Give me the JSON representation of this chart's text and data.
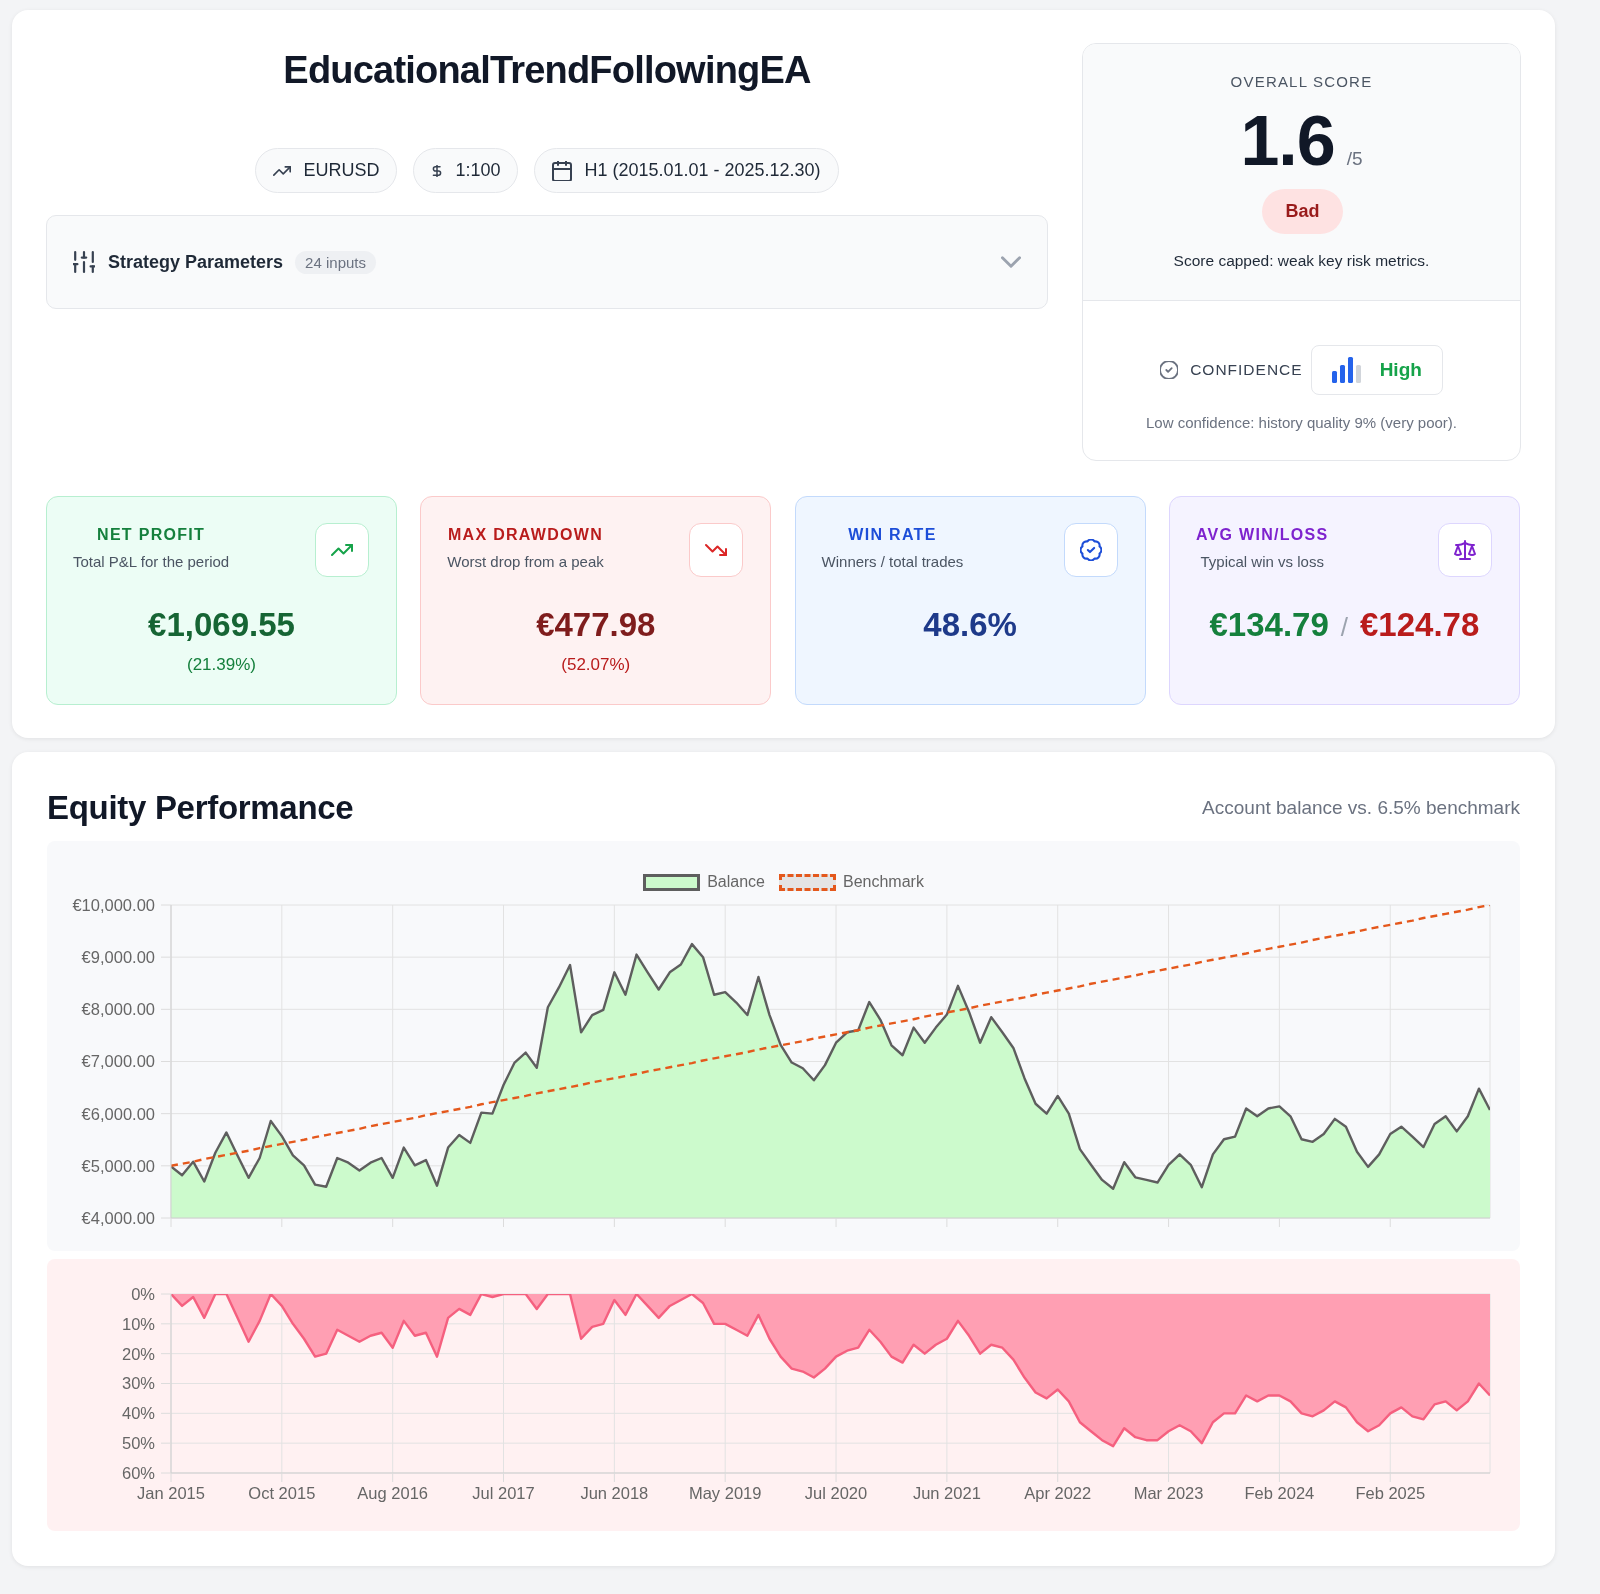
{
  "chart_data": [
    {
      "type": "other",
      "title": "EducationalTrendFollowingEA",
      "annotations": [
        "EURUSD",
        "1:100",
        "H1 (2015.01.01 - 2025.12.30)",
        "Strategy Parameters",
        "24 inputs",
        "OVERALL SCORE",
        "1.6",
        "/5",
        "Bad",
        "Score capped: weak key risk metrics.",
        "CONFIDENCE",
        "High",
        "Low confidence: history quality 9% (very poor).",
        "NET PROFIT",
        "Total P&L for the period",
        "€1,069.55",
        "(21.39%)",
        "MAX DRAWDOWN",
        "Worst drop from a peak",
        "€477.98",
        "(52.07%)",
        "WIN RATE",
        "Winners / total trades",
        "48.6%",
        "AVG WIN/LOSS",
        "Typical win vs loss",
        "€134.79",
        "/",
        "€124.78"
      ]
    },
    {
      "type": "area",
      "title": "Equity Performance",
      "subtitle": "Account balance vs. 6.5% benchmark",
      "categories": [
        null,
        null,
        null,
        null,
        null,
        null,
        null,
        null,
        null,
        null,
        null,
        null,
        null,
        null,
        null,
        null,
        null,
        null,
        null,
        null,
        null,
        null,
        null,
        null,
        null,
        null,
        null,
        null,
        null,
        null,
        null,
        null,
        null,
        null,
        null,
        null,
        null,
        null,
        null,
        null,
        null,
        null,
        null,
        null,
        null,
        null,
        null,
        null,
        null,
        null,
        null,
        null,
        null,
        null,
        null,
        null,
        null,
        null,
        null,
        null,
        null,
        null,
        null,
        null,
        null,
        null,
        null,
        null,
        null,
        null,
        null,
        null,
        null,
        null,
        null,
        null,
        null,
        null,
        null,
        null,
        null,
        null,
        null,
        null,
        null,
        null,
        null,
        null,
        null,
        null,
        null,
        null,
        null,
        null,
        null,
        null,
        null,
        null,
        null,
        null,
        null,
        null,
        null,
        null,
        null,
        null,
        null,
        null,
        null,
        null,
        null,
        null,
        null,
        null,
        null,
        null,
        null,
        null,
        null,
        null
      ],
      "series": [
        {
          "name": "Balance",
          "type": "area",
          "color": "#ccfacc",
          "values": [
            4990,
            4820,
            5080,
            4700,
            5250,
            5640,
            5200,
            4770,
            5150,
            5860,
            5570,
            5200,
            5010,
            4640,
            4600,
            5150,
            5060,
            4910,
            5060,
            5150,
            4770,
            5350,
            5010,
            5110,
            4620,
            5350,
            5590,
            5440,
            6020,
            6000,
            6550,
            6980,
            7170,
            6880,
            8040,
            8420,
            8850,
            7560,
            7890,
            7990,
            8710,
            8280,
            9050,
            8710,
            8380,
            8710,
            8860,
            9250,
            9000,
            8280,
            8330,
            8130,
            7890,
            8620,
            7890,
            7320,
            6980,
            6870,
            6640,
            6930,
            7360,
            7560,
            7600,
            8140,
            7800,
            7310,
            7120,
            7650,
            7360,
            7650,
            7900,
            8450,
            7950,
            7360,
            7850,
            7560,
            7260,
            6680,
            6190,
            6000,
            6340,
            6000,
            5320,
            5020,
            4730,
            4560,
            5070,
            4780,
            4730,
            4680,
            5020,
            5220,
            5020,
            4590,
            5220,
            5510,
            5560,
            6100,
            5950,
            6100,
            6140,
            5950,
            5510,
            5460,
            5610,
            5900,
            5750,
            5270,
            4980,
            5220,
            5610,
            5750,
            5560,
            5360,
            5800,
            5950,
            5660,
            5950,
            6480,
            6070
          ]
        },
        {
          "name": "Benchmark",
          "type": "line",
          "color": "#e4581c",
          "line_style": "dashed",
          "values": [
            5000,
            5040,
            5080,
            5130,
            5170,
            5210,
            5250,
            5290,
            5340,
            5380,
            5420,
            5460,
            5500,
            5550,
            5590,
            5630,
            5670,
            5710,
            5760,
            5800,
            5840,
            5880,
            5920,
            5970,
            6010,
            6050,
            6090,
            6130,
            6180,
            6220,
            6260,
            6300,
            6340,
            6390,
            6430,
            6470,
            6510,
            6550,
            6600,
            6640,
            6680,
            6720,
            6760,
            6810,
            6850,
            6890,
            6930,
            6970,
            7020,
            7060,
            7100,
            7140,
            7180,
            7230,
            7270,
            7310,
            7350,
            7390,
            7440,
            7480,
            7520,
            7560,
            7600,
            7650,
            7690,
            7730,
            7770,
            7810,
            7860,
            7900,
            7940,
            7980,
            8020,
            8070,
            8110,
            8150,
            8190,
            8230,
            8280,
            8320,
            8360,
            8400,
            8440,
            8490,
            8530,
            8570,
            8610,
            8650,
            8700,
            8740,
            8780,
            8820,
            8860,
            8910,
            8950,
            8990,
            9030,
            9070,
            9120,
            9160,
            9200,
            9240,
            9280,
            9330,
            9370,
            9410,
            9450,
            9490,
            9540,
            9580,
            9620,
            9660,
            9700,
            9750,
            9790,
            9830,
            9870,
            9910,
            9960,
            10000
          ]
        }
      ],
      "ylim": [
        4000,
        10000
      ],
      "yticks": [
        {
          "value": 4000,
          "label": "€4,000.00"
        },
        {
          "value": 5000,
          "label": "€5,000.00"
        },
        {
          "value": 6000,
          "label": "€6,000.00"
        },
        {
          "value": 7000,
          "label": "€7,000.00"
        },
        {
          "value": 8000,
          "label": "€8,000.00"
        },
        {
          "value": 9000,
          "label": "€9,000.00"
        },
        {
          "value": 10000,
          "label": "€10,000.00"
        }
      ],
      "grid": true,
      "legend": "top"
    },
    {
      "type": "area",
      "categories": [
        "Jan 2015",
        null,
        null,
        null,
        null,
        null,
        null,
        null,
        null,
        null,
        "Oct 2015",
        null,
        null,
        null,
        null,
        null,
        null,
        null,
        null,
        null,
        "Aug 2016",
        null,
        null,
        null,
        null,
        null,
        null,
        null,
        null,
        null,
        "Jul 2017",
        null,
        null,
        null,
        null,
        null,
        null,
        null,
        null,
        null,
        "Jun 2018",
        null,
        null,
        null,
        null,
        null,
        null,
        null,
        null,
        null,
        "May 2019",
        null,
        null,
        null,
        null,
        null,
        null,
        null,
        null,
        null,
        "Jul 2020",
        null,
        null,
        null,
        null,
        null,
        null,
        null,
        null,
        null,
        "Jun 2021",
        null,
        null,
        null,
        null,
        null,
        null,
        null,
        null,
        null,
        "Apr 2022",
        null,
        null,
        null,
        null,
        null,
        null,
        null,
        null,
        null,
        "Mar 2023",
        null,
        null,
        null,
        null,
        null,
        null,
        null,
        null,
        null,
        "Feb 2024",
        null,
        null,
        null,
        null,
        null,
        null,
        null,
        null,
        null,
        "Feb 2025",
        null,
        null,
        null,
        null,
        null,
        null,
        null,
        null,
        null
      ],
      "color": "#ff9fb3",
      "values": [
        0,
        4,
        1,
        8,
        0,
        0,
        8,
        16,
        9,
        0,
        4,
        10,
        15,
        21,
        20,
        12,
        14,
        16,
        14,
        13,
        18,
        9,
        14,
        13,
        21,
        8,
        5,
        7,
        0,
        1,
        0,
        0,
        0,
        5,
        0,
        0,
        0,
        15,
        11,
        10,
        2,
        7,
        0,
        4,
        8,
        4,
        2,
        0,
        3,
        10,
        10,
        12,
        14,
        7,
        15,
        21,
        25,
        26,
        28,
        25,
        21,
        19,
        18,
        12,
        16,
        21,
        23,
        17,
        20,
        17,
        15,
        9,
        14,
        20,
        17,
        18,
        22,
        28,
        33,
        35,
        32,
        36,
        43,
        46,
        49,
        51,
        45,
        48,
        49,
        49,
        46,
        44,
        46,
        50,
        43,
        40,
        40,
        34,
        36,
        34,
        34,
        36,
        40,
        41,
        39,
        36,
        38,
        43,
        46,
        44,
        40,
        38,
        41,
        42,
        37,
        36,
        39,
        36,
        30,
        34
      ],
      "ylim": [
        60,
        0
      ],
      "yticks": [
        {
          "value": 0,
          "label": "0%"
        },
        {
          "value": 10,
          "label": "10%"
        },
        {
          "value": 20,
          "label": "20%"
        },
        {
          "value": 30,
          "label": "30%"
        },
        {
          "value": 40,
          "label": "40%"
        },
        {
          "value": 50,
          "label": "50%"
        },
        {
          "value": 60,
          "label": "60%"
        }
      ],
      "grid": true
    }
  ]
}
